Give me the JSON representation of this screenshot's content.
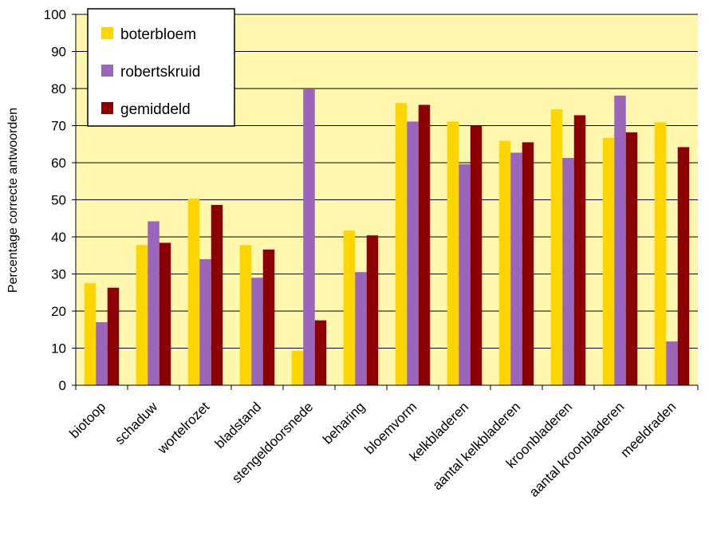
{
  "chart_data": {
    "type": "bar",
    "ylabel": "Percentage correcte antwoorden",
    "xlabel": "",
    "ylim": [
      0,
      100
    ],
    "yticks": [
      0,
      10,
      20,
      30,
      40,
      50,
      60,
      70,
      80,
      90,
      100
    ],
    "grid": true,
    "legend_position": "top-left",
    "plot_background": "#FFF7AE",
    "categories": [
      "biotoop",
      "schaduw",
      "wortelrozet",
      "bladstand",
      "stengeldoorsnede",
      "beharing",
      "bloemvorm",
      "kelkbladeren",
      "aantal kelkbladeren",
      "kroonbladeren",
      "aantal kroonbladeren",
      "meeldraden"
    ],
    "series": [
      {
        "name": "boterbloem",
        "color": "#FFD500",
        "values": [
          27.5,
          37.8,
          50.3,
          37.8,
          9.3,
          41.7,
          76.1,
          71.1,
          65.9,
          74.4,
          66.7,
          70.9
        ]
      },
      {
        "name": "robertskruid",
        "color": "#9966BB",
        "values": [
          17.0,
          44.2,
          34.0,
          29.0,
          79.8,
          30.5,
          71.1,
          59.6,
          62.7,
          61.3,
          78.1,
          11.8
        ]
      },
      {
        "name": "gemiddeld",
        "color": "#8B0000",
        "values": [
          26.3,
          38.4,
          48.6,
          36.6,
          17.5,
          40.4,
          75.6,
          69.9,
          65.5,
          72.8,
          68.2,
          64.2
        ]
      }
    ]
  }
}
